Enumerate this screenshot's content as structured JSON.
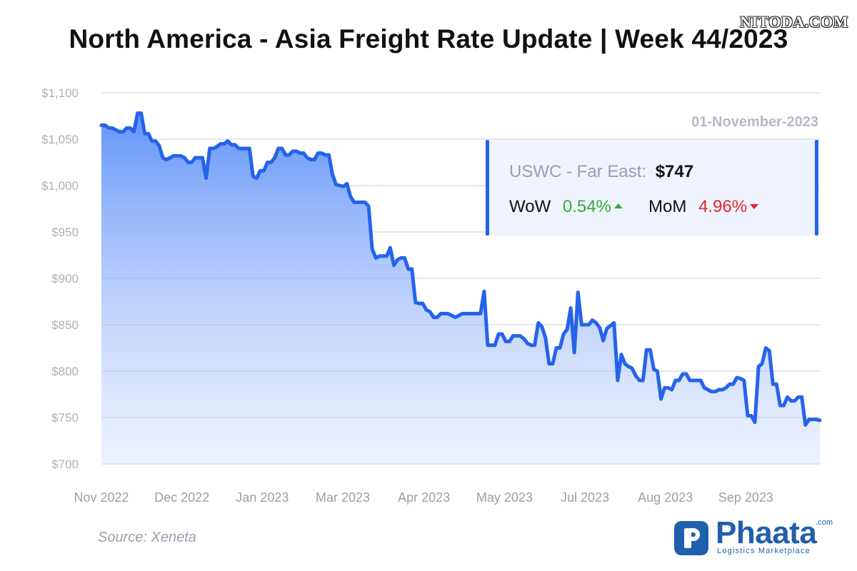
{
  "watermark": "NITODA.COM",
  "title": "North America - Asia Freight Rate Update | Week 44/2023",
  "source": "Source: Xeneta",
  "brand": {
    "name": "Phaata",
    "domain": ".com",
    "tagline": "Logistics Marketplace",
    "color": "#1f5fae"
  },
  "info_box": {
    "date": "01-November-2023",
    "route_label": "USWC - Far East:",
    "route_value": "$747",
    "wow_label": "WoW",
    "wow_value": "0.54%",
    "wow_direction": "up",
    "mom_label": "MoM",
    "mom_value": "4.96%",
    "mom_direction": "down",
    "up_color": "#3aa63a",
    "down_color": "#e8232b"
  },
  "chart_data": {
    "type": "area",
    "title": "North America - Asia Freight Rate Update | Week 44/2023",
    "series_name": "USWC - Far East",
    "line_color": "#2563eb",
    "ylim": [
      700,
      1100
    ],
    "y_ticks": [
      700,
      750,
      800,
      850,
      900,
      950,
      1000,
      1050,
      1100
    ],
    "y_tick_labels": [
      "$700",
      "$750",
      "$800",
      "$850",
      "$900",
      "$950",
      "$1,000",
      "$1,050",
      "$1,100"
    ],
    "x_tick_labels": [
      "Nov 2022",
      "Dec 2022",
      "Jan 2023",
      "Mar 2023",
      "Apr 2023",
      "May 2023",
      "Jul 2023",
      "Aug 2023",
      "Sep 2023"
    ],
    "x_tick_positions": [
      0,
      0.112,
      0.224,
      0.336,
      0.449,
      0.561,
      0.673,
      0.785,
      0.897
    ],
    "grid": true,
    "values": [
      1065,
      1065,
      1062,
      1062,
      1060,
      1058,
      1058,
      1062,
      1062,
      1058,
      1078,
      1078,
      1056,
      1056,
      1048,
      1048,
      1043,
      1030,
      1028,
      1030,
      1032,
      1032,
      1032,
      1030,
      1025,
      1025,
      1030,
      1030,
      1030,
      1008,
      1040,
      1040,
      1042,
      1045,
      1045,
      1048,
      1044,
      1044,
      1040,
      1040,
      1040,
      1040,
      1010,
      1008,
      1016,
      1016,
      1025,
      1025,
      1030,
      1040,
      1040,
      1033,
      1033,
      1037,
      1037,
      1035,
      1035,
      1030,
      1028,
      1028,
      1035,
      1035,
      1033,
      1033,
      1012,
      1001,
      1000,
      999,
      1002,
      988,
      982,
      982,
      982,
      982,
      978,
      932,
      922,
      924,
      924,
      924,
      933,
      914,
      920,
      922,
      922,
      910,
      910,
      874,
      873,
      873,
      866,
      864,
      858,
      858,
      862,
      862,
      862,
      860,
      858,
      860,
      862,
      862,
      862,
      862,
      862,
      862,
      886,
      828,
      828,
      828,
      840,
      840,
      832,
      832,
      838,
      838,
      838,
      835,
      830,
      828,
      828,
      852,
      848,
      836,
      808,
      808,
      825,
      825,
      840,
      845,
      868,
      820,
      885,
      850,
      850,
      850,
      855,
      852,
      847,
      833,
      846,
      849,
      852,
      790,
      818,
      808,
      805,
      803,
      795,
      790,
      790,
      823,
      823,
      802,
      800,
      770,
      782,
      782,
      780,
      790,
      790,
      797,
      797,
      790,
      790,
      790,
      790,
      782,
      780,
      778,
      778,
      780,
      780,
      782,
      786,
      786,
      793,
      792,
      790,
      752,
      752,
      745,
      805,
      808,
      825,
      822,
      786,
      786,
      763,
      763,
      772,
      768,
      768,
      772,
      772,
      742,
      748,
      748,
      748,
      747
    ]
  }
}
